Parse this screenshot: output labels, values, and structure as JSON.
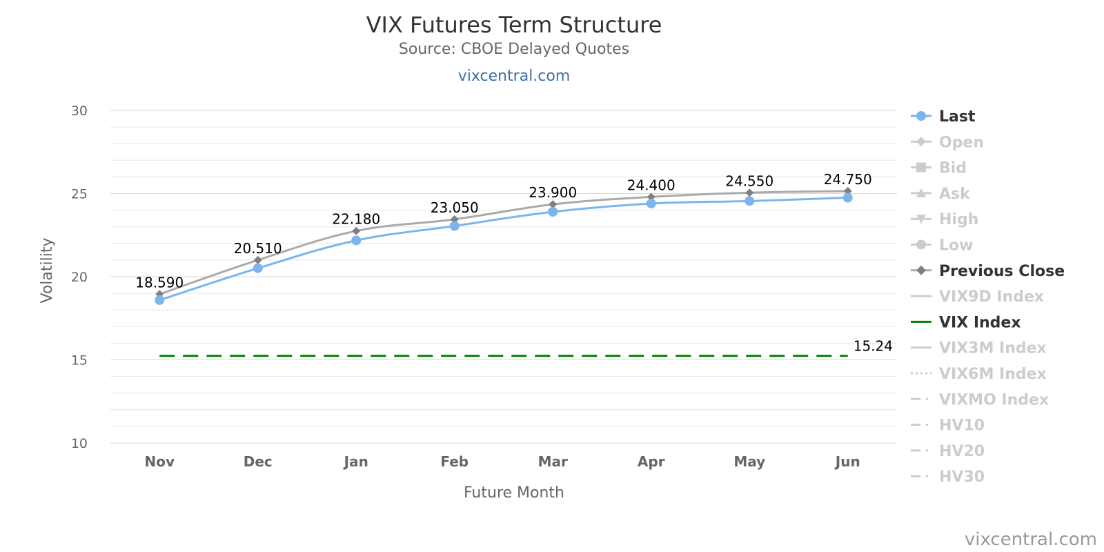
{
  "chart_data": {
    "type": "line",
    "title": "VIX Futures Term Structure",
    "subtitle": "Source: CBOE Delayed Quotes",
    "link_text": "vixcentral.com",
    "xlabel": "Future Month",
    "ylabel": "Volatility",
    "categories": [
      "Nov",
      "Dec",
      "Jan",
      "Feb",
      "Mar",
      "Apr",
      "May",
      "Jun"
    ],
    "ylim": [
      10,
      30
    ],
    "yticks": [
      "10",
      "15",
      "20",
      "25",
      "30"
    ],
    "grid": true,
    "legend_position": "right",
    "series": [
      {
        "name": "Last",
        "values": [
          18.59,
          20.51,
          22.18,
          23.05,
          23.9,
          24.4,
          24.55,
          24.75
        ],
        "labels": [
          "18.590",
          "20.510",
          "22.180",
          "23.050",
          "23.900",
          "24.400",
          "24.550",
          "24.750"
        ],
        "color": "#7cb5ec"
      },
      {
        "name": "Previous Close",
        "values": [
          18.95,
          21.0,
          22.75,
          23.45,
          24.35,
          24.8,
          25.05,
          25.15
        ],
        "color": "#aaaaaa"
      },
      {
        "name": "VIX Index",
        "value": 15.24,
        "label": "15.24",
        "color": "#008000",
        "style": "dashed"
      }
    ],
    "legend": [
      {
        "name": "Last",
        "active": true,
        "symbol": "circle"
      },
      {
        "name": "Open",
        "active": false,
        "symbol": "diamond"
      },
      {
        "name": "Bid",
        "active": false,
        "symbol": "square"
      },
      {
        "name": "Ask",
        "active": false,
        "symbol": "triangle"
      },
      {
        "name": "High",
        "active": false,
        "symbol": "triangle-down"
      },
      {
        "name": "Low",
        "active": false,
        "symbol": "circle"
      },
      {
        "name": "Previous Close",
        "active": true,
        "symbol": "diamond"
      },
      {
        "name": "VIX9D Index",
        "active": false,
        "symbol": "line"
      },
      {
        "name": "VIX Index",
        "active": true,
        "symbol": "line"
      },
      {
        "name": "VIX3M Index",
        "active": false,
        "symbol": "line"
      },
      {
        "name": "VIX6M Index",
        "active": false,
        "symbol": "dotted"
      },
      {
        "name": "VIXMO Index",
        "active": false,
        "symbol": "dashdot"
      },
      {
        "name": "HV10",
        "active": false,
        "symbol": "dashdot"
      },
      {
        "name": "HV20",
        "active": false,
        "symbol": "dashdot"
      },
      {
        "name": "HV30",
        "active": false,
        "symbol": "dashdot"
      }
    ]
  },
  "credit": "vixcentral.com",
  "colors": {
    "last": "#7cb5ec",
    "previous_close": "#aaaaaa",
    "previous_close_marker": "#808080",
    "vix_index": "#008000",
    "legend_active_text": "#333333",
    "legend_inactive": "#cccccc",
    "grid": "#e6e6e6"
  }
}
